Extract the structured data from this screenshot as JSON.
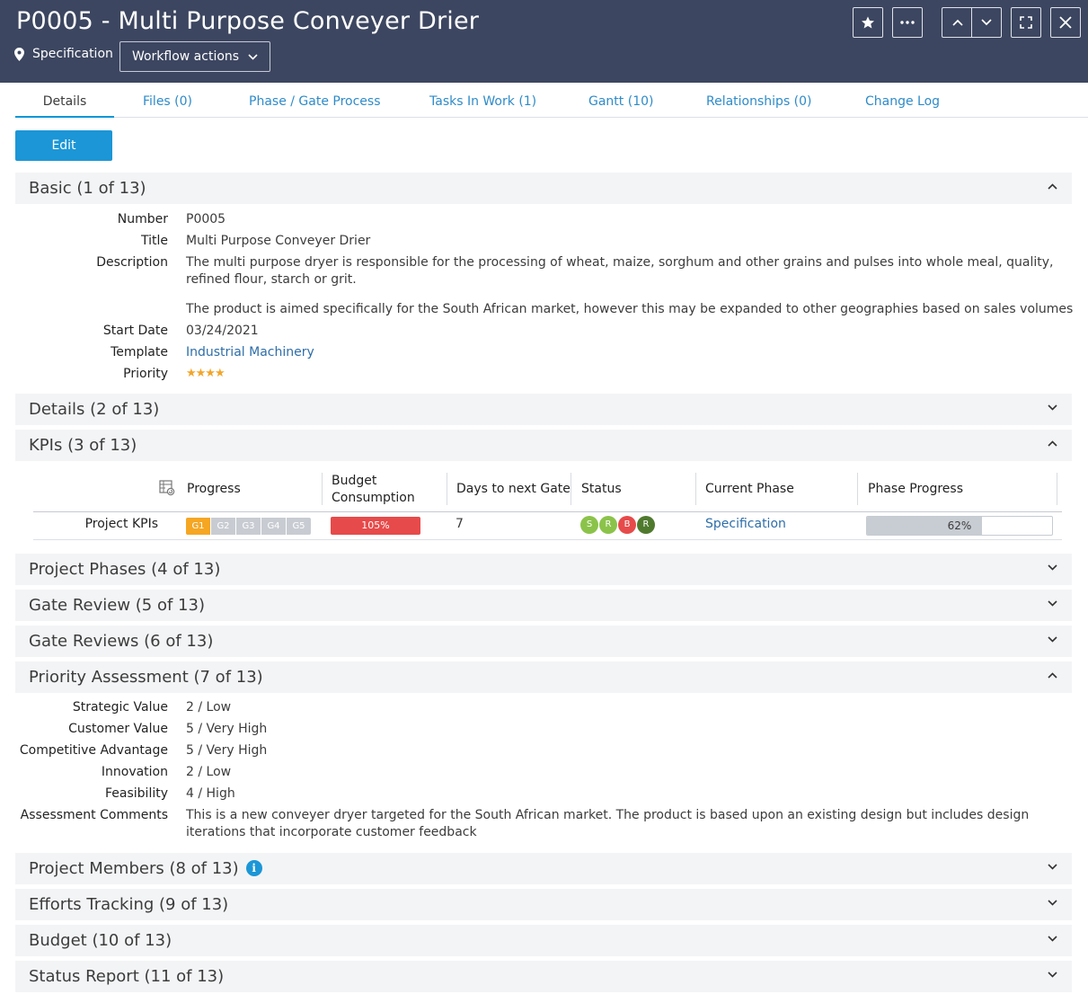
{
  "header": {
    "title": "P0005 - Multi Purpose Conveyer Drier",
    "state": "Specification",
    "workflow_label": "Workflow actions"
  },
  "tabs": [
    {
      "label": "Details"
    },
    {
      "label": "Files (0)"
    },
    {
      "label": "Phase / Gate Process"
    },
    {
      "label": "Tasks In Work (1)"
    },
    {
      "label": "Gantt (10)"
    },
    {
      "label": "Relationships (0)"
    },
    {
      "label": "Change Log"
    }
  ],
  "edit_label": "Edit",
  "sections": {
    "basic": "Basic (1 of 13)",
    "details": "Details (2 of 13)",
    "kpis": "KPIs (3 of 13)",
    "phases": "Project Phases (4 of 13)",
    "gate_review": "Gate Review (5 of 13)",
    "gate_reviews": "Gate Reviews (6 of 13)",
    "priority": "Priority Assessment (7 of 13)",
    "members": "Project Members (8 of 13)",
    "efforts": "Efforts Tracking (9 of 13)",
    "budget": "Budget (10 of 13)",
    "status_report": "Status Report (11 of 13)"
  },
  "basic": {
    "number_label": "Number",
    "number": "P0005",
    "title_label": "Title",
    "title": "Multi Purpose Conveyer Drier",
    "description_label": "Description",
    "description_1": "The multi purpose dryer  is responsible for the processing of wheat, maize, sorghum and other grains and pulses into whole meal, quality, refined flour, starch or grit.",
    "description_2": "The product is aimed specifically for the South African market, however this may be expanded to other geographies based on sales volumes",
    "start_date_label": "Start Date",
    "start_date": "03/24/2021",
    "template_label": "Template",
    "template": "Industrial Machinery",
    "priority_label": "Priority",
    "priority_stars": "★★★★",
    "priority_value": 4
  },
  "kpis": {
    "headers": {
      "progress": "Progress",
      "budget": "Budget Consumption",
      "days": "Days to next Gate",
      "status": "Status",
      "phase": "Current Phase",
      "phase_progress": "Phase Progress"
    },
    "row_label": "Project KPIs",
    "gates": [
      "G1",
      "G2",
      "G3",
      "G4",
      "G5"
    ],
    "budget": "105%",
    "days": "7",
    "status": [
      {
        "letter": "S",
        "color": "#8bc34a"
      },
      {
        "letter": "R",
        "color": "#8bc34a"
      },
      {
        "letter": "B",
        "color": "#e74a4a"
      },
      {
        "letter": "R",
        "color": "#4f7a2e"
      }
    ],
    "current_phase": "Specification",
    "phase_progress": "62%",
    "phase_progress_value": 0.62
  },
  "priority_assessment": {
    "strategic_label": "Strategic Value",
    "strategic": "2 / Low",
    "customer_label": "Customer Value",
    "customer": "5 / Very High",
    "competitive_label": "Competitive Advantage",
    "competitive": "5 / Very High",
    "innovation_label": "Innovation",
    "innovation": "2 / Low",
    "feasibility_label": "Feasibility",
    "feasibility": "4 / High",
    "comments_label": "Assessment Comments",
    "comments": "This is a new conveyer dryer targeted for the South African market. The product is based upon an existing design but includes design iterations that incorporate customer feedback"
  },
  "colors": {
    "header_bg": "#3c4660",
    "accent": "#1c96d6",
    "gate_active": "#f5a623",
    "gate_inactive": "#c8ccd2",
    "budget_over": "#e74a4a"
  }
}
